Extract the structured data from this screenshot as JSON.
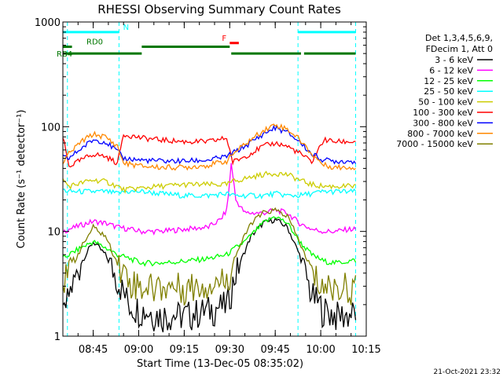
{
  "chart_data": {
    "type": "line",
    "title": "RHESSI Observing Summary Count Rates",
    "xlabel": "Start Time (13-Dec-05 08:35:02)",
    "ylabel": "Count Rate (s⁻¹ detector⁻¹)",
    "yscale": "log",
    "ylim": [
      1,
      1000
    ],
    "xlim_min": [
      0,
      100
    ],
    "y_ticks": [
      {
        "value": 1,
        "label": "1"
      },
      {
        "value": 10,
        "label": "10"
      },
      {
        "value": 100,
        "label": "100"
      },
      {
        "value": 1000,
        "label": "1000"
      }
    ],
    "x_ticks": [
      {
        "value": 10,
        "label": "08:45"
      },
      {
        "value": 25,
        "label": "09:00"
      },
      {
        "value": 40,
        "label": "09:15"
      },
      {
        "value": 55,
        "label": "09:30"
      },
      {
        "value": 70,
        "label": "09:45"
      },
      {
        "value": 85,
        "label": "10:00"
      },
      {
        "value": 100,
        "label": "10:15"
      }
    ],
    "legend_header": [
      "Det 1,3,4,5,6,9,",
      "FDecim 1, Att 0"
    ],
    "legend_placement": "right",
    "grid": false,
    "timestamp": "21-Oct-2021 23:32",
    "night_boundaries_min": [
      1.5,
      18.5,
      77.5,
      96.5
    ],
    "flags": [
      {
        "label": "N",
        "color": "#00ffff",
        "y": 800,
        "segments": [
          [
            0,
            18.5
          ],
          [
            77.5,
            96.5
          ]
        ]
      },
      {
        "label": "F",
        "color": "#ff0000",
        "y": 630,
        "segments": [
          [
            55,
            58
          ]
        ]
      },
      {
        "label": "RD0",
        "color": "#007700",
        "y": 580,
        "segments": [
          [
            0,
            3
          ],
          [
            26,
            55
          ]
        ]
      },
      {
        "label": "RB4",
        "color": "#007700",
        "y": 500,
        "segments": [
          [
            0,
            26
          ],
          [
            55.5,
            78.5
          ],
          [
            79.5,
            96.5
          ]
        ]
      }
    ],
    "series": [
      {
        "name": "3 - 6 keV",
        "color": "#000000",
        "x": [
          0,
          2,
          6,
          10,
          14,
          18,
          22,
          26,
          32,
          40,
          48,
          54,
          57,
          62,
          66,
          70,
          74,
          78,
          82,
          86,
          90,
          94,
          96.5
        ],
        "y": [
          1.5,
          2.5,
          5,
          8,
          6,
          3.5,
          2,
          1.8,
          1.6,
          1.6,
          1.8,
          2,
          4,
          9,
          12,
          13,
          11,
          6,
          2.5,
          1.8,
          1.6,
          1.6,
          1.7
        ]
      },
      {
        "name": "6 - 12 keV",
        "color": "#ff00ff",
        "x": [
          0,
          2,
          6,
          10,
          14,
          18,
          22,
          26,
          32,
          40,
          48,
          52,
          54,
          55,
          55.5,
          56,
          57,
          60,
          66,
          70,
          74,
          78,
          82,
          86,
          90,
          94,
          96.5
        ],
        "y": [
          10,
          10.5,
          11.5,
          12.5,
          12,
          11,
          10.5,
          10,
          10,
          10.5,
          11,
          13,
          16,
          30,
          45,
          35,
          20,
          15,
          15,
          16,
          15,
          12,
          10.5,
          10,
          10,
          10.5,
          10.5
        ]
      },
      {
        "name": "12 - 25 keV",
        "color": "#00ff00",
        "x": [
          0,
          2,
          6,
          10,
          14,
          18,
          22,
          26,
          32,
          40,
          48,
          54,
          57,
          60,
          66,
          70,
          74,
          78,
          82,
          86,
          90,
          94,
          96.5
        ],
        "y": [
          5.5,
          6,
          7,
          8,
          7,
          6,
          5.5,
          5,
          5,
          5.2,
          5.5,
          6,
          7,
          8,
          12,
          14,
          12,
          8,
          6,
          5.2,
          5,
          5.2,
          5.3
        ]
      },
      {
        "name": "25 - 50 keV",
        "color": "#00ffff",
        "x": [
          0,
          2,
          6,
          10,
          14,
          18,
          20,
          26,
          32,
          40,
          48,
          54,
          56,
          60,
          66,
          70,
          74,
          78,
          82,
          86,
          90,
          94,
          96.5
        ],
        "y": [
          25,
          24,
          24,
          24,
          24,
          23,
          24,
          24,
          23,
          22,
          22,
          23,
          22,
          22,
          22,
          23,
          22,
          22,
          23,
          24,
          24,
          24,
          24
        ]
      },
      {
        "name": "50 - 100 keV",
        "color": "#cccc00",
        "x": [
          0,
          2,
          6,
          10,
          14,
          18,
          20,
          26,
          32,
          40,
          48,
          54,
          56,
          60,
          66,
          70,
          74,
          78,
          82,
          86,
          90,
          94,
          96.5
        ],
        "y": [
          31,
          27,
          29,
          31,
          30,
          27,
          25,
          26,
          27,
          28,
          28,
          28,
          30,
          32,
          35,
          36,
          35,
          31,
          28,
          27,
          27,
          27,
          27
        ]
      },
      {
        "name": "100 - 300 keV",
        "color": "#ff0000",
        "x": [
          0,
          2,
          6,
          10,
          14,
          18,
          20,
          26,
          32,
          40,
          48,
          54,
          56,
          60,
          66,
          70,
          74,
          78,
          82,
          86,
          90,
          94,
          96.5
        ],
        "y": [
          80,
          42,
          48,
          55,
          52,
          45,
          85,
          78,
          75,
          72,
          72,
          78,
          46,
          52,
          65,
          70,
          65,
          56,
          46,
          75,
          72,
          72,
          72
        ]
      },
      {
        "name": "300 - 800 keV",
        "color": "#0000ff",
        "x": [
          0,
          2,
          6,
          10,
          14,
          18,
          20,
          26,
          32,
          40,
          48,
          54,
          56,
          60,
          66,
          70,
          74,
          78,
          82,
          86,
          90,
          94,
          96.5
        ],
        "y": [
          51,
          50,
          62,
          75,
          72,
          58,
          50,
          48,
          47,
          47,
          48,
          52,
          56,
          65,
          85,
          98,
          88,
          72,
          55,
          48,
          47,
          47,
          47
        ]
      },
      {
        "name": "800 - 7000 keV",
        "color": "#ff8800",
        "x": [
          0,
          2,
          6,
          10,
          14,
          18,
          20,
          26,
          32,
          40,
          48,
          54,
          56,
          60,
          66,
          70,
          74,
          78,
          82,
          86,
          90,
          94,
          96.5
        ],
        "y": [
          45,
          55,
          72,
          85,
          80,
          65,
          45,
          42,
          41,
          41,
          43,
          47,
          55,
          68,
          92,
          105,
          95,
          76,
          55,
          43,
          41,
          41,
          41
        ]
      },
      {
        "name": "7000 - 15000 keV",
        "color": "#808000",
        "x": [
          0,
          2,
          6,
          10,
          14,
          18,
          22,
          26,
          32,
          40,
          48,
          54,
          57,
          62,
          66,
          70,
          74,
          78,
          82,
          86,
          90,
          94,
          96.5
        ],
        "y": [
          3.3,
          4,
          7,
          11,
          9,
          5,
          3.5,
          3,
          3,
          3,
          3.2,
          3.5,
          6,
          12,
          15,
          16,
          14,
          8,
          4,
          3,
          3,
          3,
          3
        ]
      }
    ]
  }
}
